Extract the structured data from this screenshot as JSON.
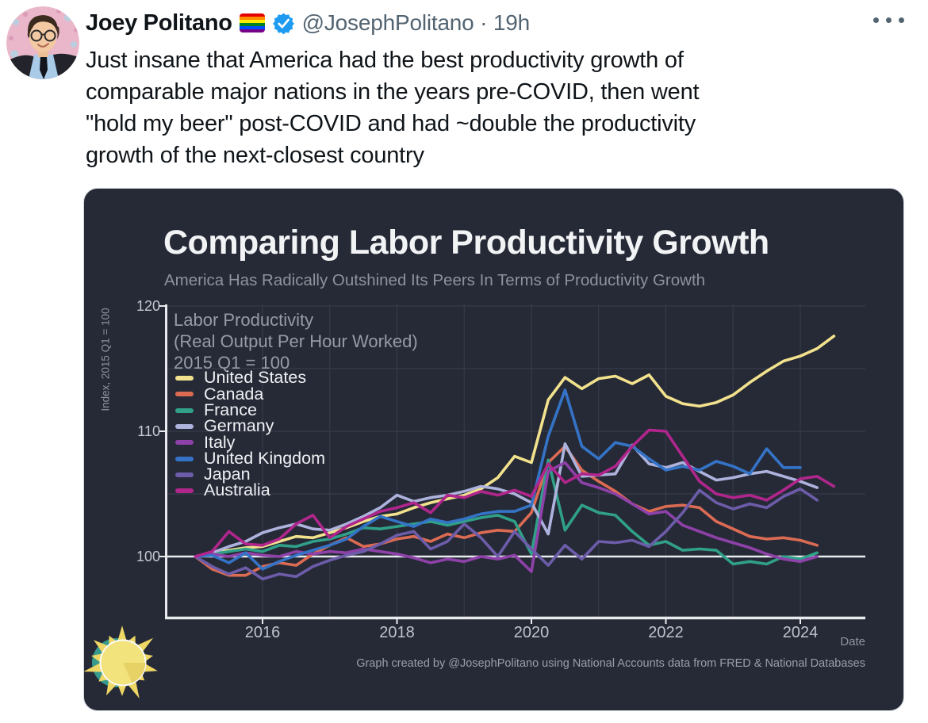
{
  "tweet": {
    "display_name": "Joey Politano",
    "handle_line": "@JosephPolitano · 19h",
    "body_lines": [
      "Just insane that America had the best productivity growth of",
      "comparable major nations in the years pre-COVID, then went",
      "\"hold my beer\" post-COVID and had ~double the productivity",
      "growth of the next-closest country"
    ]
  },
  "chart": {
    "title": "Comparing Labor Productivity Growth",
    "subtitle": "America Has Radically Outshined Its Peers In Terms of Productivity Growth",
    "legend_header_lines": [
      "Labor Productivity",
      "(Real Output Per Hour Worked)",
      "2015 Q1 = 100"
    ],
    "y_axis_label": "Index, 2015 Q1 = 100",
    "x_axis_label": "Date",
    "caption": "Graph created by @JosephPolitano using National Accounts data from FRED & National Databases"
  },
  "colors": {
    "card_bg": "#262a36",
    "grid": "#363b4b",
    "axis": "#e8eaee",
    "verified_blue": "#1d9bf0",
    "handle_gray": "#536471",
    "text_dark": "#0f1419"
  },
  "chart_data": {
    "type": "line",
    "title": "Comparing Labor Productivity Growth",
    "subtitle": "America Has Radically Outshined Its Peers In Terms of Productivity Growth",
    "xlabel": "Date",
    "ylabel": "Index, 2015 Q1 = 100",
    "x_start": 2015.0,
    "x_step": 0.25,
    "x_ticks": [
      2016,
      2018,
      2020,
      2022,
      2024
    ],
    "y_ticks": [
      120,
      110,
      100
    ],
    "grid_years": [
      2016,
      2017,
      2018,
      2019,
      2020,
      2021,
      2022,
      2023,
      2024
    ],
    "grid_values": [
      105,
      110,
      115,
      120
    ],
    "reference_line": 100,
    "ylim": [
      95,
      120.5
    ],
    "legend_position": "upper-left",
    "series": [
      {
        "name": "United States",
        "slug": "united-states",
        "color": "#f2e28d",
        "values": [
          100,
          100.3,
          100.5,
          100.7,
          100.8,
          101.2,
          101.6,
          101.5,
          101.9,
          102.3,
          102.8,
          103.2,
          103.4,
          103.9,
          104.3,
          104.6,
          104.9,
          105.4,
          106.3,
          108,
          107.5,
          112.5,
          114.3,
          113.4,
          114.2,
          114.4,
          113.8,
          114.5,
          112.8,
          112.2,
          112,
          112.3,
          112.9,
          113.9,
          114.8,
          115.6,
          116,
          116.6,
          117.6
        ]
      },
      {
        "name": "Canada",
        "slug": "canada",
        "color": "#dc6b53",
        "values": [
          100,
          99,
          98.5,
          98.5,
          99.2,
          99.5,
          99.3,
          100.2,
          100.9,
          101.5,
          100.8,
          101,
          101.4,
          101.6,
          101.2,
          101.8,
          101.5,
          101.9,
          102.1,
          102,
          103.5,
          107.5,
          108.8,
          106.9,
          106,
          105.2,
          104.2,
          103.6,
          104,
          104.1,
          103.9,
          102.8,
          102.2,
          101.6,
          101.4,
          101.5,
          101.3,
          100.9
        ]
      },
      {
        "name": "France",
        "slug": "france",
        "color": "#30a089",
        "values": [
          100,
          100.2,
          100.4,
          100.6,
          100.4,
          100.9,
          100.8,
          101.2,
          101.4,
          101.8,
          102.3,
          102.2,
          102.4,
          102.6,
          102.8,
          102.5,
          102.8,
          103.1,
          103.3,
          102.8,
          100.2,
          107.7,
          102.1,
          104.1,
          103.5,
          103.3,
          102,
          100.9,
          101.2,
          100.5,
          100.6,
          100.5,
          99.4,
          99.6,
          99.4,
          100,
          99.8,
          100.3
        ]
      },
      {
        "name": "Germany",
        "slug": "germany",
        "color": "#adb3dd",
        "values": [
          100,
          100.3,
          100.8,
          101.2,
          101.9,
          102.3,
          102.6,
          102.2,
          102.1,
          102.6,
          103.2,
          103.9,
          104.9,
          104.4,
          104.7,
          104.9,
          105.2,
          105.6,
          105.4,
          105,
          104.3,
          101.8,
          109,
          106.4,
          106.5,
          106.6,
          108.9,
          107.4,
          107.1,
          107.5,
          106.8,
          106.1,
          106.3,
          106.6,
          106.8,
          106.4,
          106,
          105.5
        ]
      },
      {
        "name": "Italy",
        "slug": "italy",
        "color": "#8e41a8",
        "values": [
          100,
          100.2,
          100,
          100.3,
          100.1,
          100,
          100.4,
          100.2,
          100.4,
          100.3,
          100.6,
          100.4,
          100.2,
          99.9,
          99.5,
          99.8,
          99.6,
          100,
          99.8,
          100.1,
          98.8,
          106.8,
          107.5,
          105.9,
          105.5,
          105,
          104.2,
          103.4,
          103.6,
          102.5,
          102,
          101.5,
          101.1,
          100.7,
          100.2,
          99.8,
          99.6,
          100
        ]
      },
      {
        "name": "United Kingdom",
        "slug": "united-kingdom",
        "color": "#3473c6",
        "values": [
          100,
          100.1,
          99.5,
          100.3,
          99,
          99.6,
          100.1,
          100.5,
          100.9,
          101.4,
          102.4,
          103.2,
          102.8,
          102.4,
          103,
          102.7,
          103,
          103.4,
          103.6,
          103.6,
          104.1,
          109.6,
          113.3,
          108.8,
          107.8,
          109.1,
          108.8,
          107.8,
          106.9,
          107.2,
          106.9,
          107.6,
          107.2,
          106.6,
          108.6,
          107.1,
          107.1
        ]
      },
      {
        "name": "Japan",
        "slug": "japan",
        "color": "#6c5ca9",
        "values": [
          100,
          99.2,
          98.6,
          99.1,
          98.2,
          98.6,
          98.4,
          99.2,
          99.7,
          100.1,
          100.4,
          101,
          101.7,
          102,
          100.6,
          101.2,
          102.6,
          101.5,
          100,
          102,
          100.6,
          99.3,
          100.9,
          99.8,
          101.2,
          101.1,
          101.3,
          100.8,
          102,
          103.5,
          105.3,
          104.3,
          103.8,
          104.2,
          103.9,
          104.8,
          105.4,
          104.5
        ]
      },
      {
        "name": "Australia",
        "slug": "australia",
        "color": "#b0268c",
        "values": [
          100,
          100.4,
          102,
          101,
          100.9,
          101.4,
          102.6,
          103.3,
          101.5,
          102.4,
          103,
          103.6,
          103.9,
          104.3,
          103.5,
          104.9,
          104.7,
          105.2,
          104.9,
          105.3,
          104.8,
          107.4,
          105.9,
          106.6,
          106.5,
          107.2,
          108.8,
          110.1,
          110,
          108,
          106,
          105,
          104.7,
          104.9,
          104.5,
          105.3,
          106.2,
          106.4,
          105.6
        ]
      }
    ]
  }
}
